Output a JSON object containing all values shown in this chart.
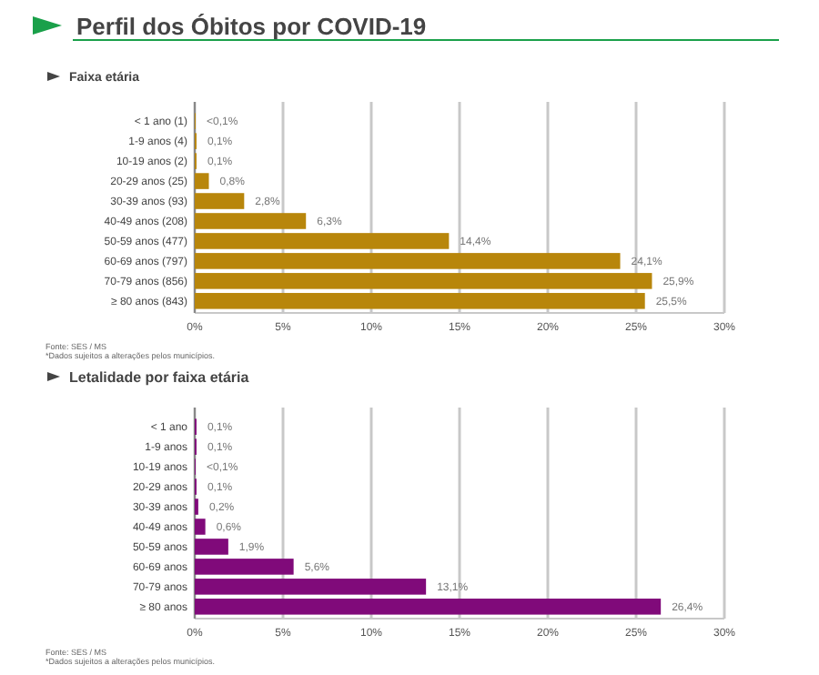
{
  "chart_data": [
    {
      "type": "bar",
      "orientation": "horizontal",
      "title": "Perfil dos Óbitos por COVID-19",
      "subtitle": "Faixa etária",
      "categories": [
        "< 1 ano (1)",
        "1-9 anos (4)",
        "10-19 anos (2)",
        "20-29 anos (25)",
        "30-39 anos (93)",
        "40-49 anos (208)",
        "50-59 anos (477)",
        "60-69 anos (797)",
        "70-79 anos (856)",
        "≥ 80 anos (843)"
      ],
      "values": [
        0.05,
        0.1,
        0.1,
        0.8,
        2.8,
        6.3,
        14.4,
        24.1,
        25.9,
        25.5
      ],
      "value_labels": [
        "<0,1%",
        "0,1%",
        "0,1%",
        "0,8%",
        "2,8%",
        "6,3%",
        "14,4%",
        "24,1%",
        "25,9%",
        "25,5%"
      ],
      "color": "#b8860b",
      "xlim": [
        0,
        30
      ],
      "xticks": [
        {
          "value": 0,
          "label": "0%"
        },
        {
          "value": 5,
          "label": "5%"
        },
        {
          "value": 10,
          "label": "10%"
        },
        {
          "value": 15,
          "label": "15%"
        },
        {
          "value": 20,
          "label": "20%"
        },
        {
          "value": 25,
          "label": "25%"
        },
        {
          "value": 30,
          "label": "30%"
        }
      ],
      "grid": "x",
      "annotations": [
        "Fonte: SES / MS",
        "*Dados sujeitos a alterações pelos municípios."
      ]
    },
    {
      "type": "bar",
      "orientation": "horizontal",
      "title": "Letalidade por faixa etária",
      "categories": [
        "< 1 ano",
        "1-9 anos",
        "10-19 anos",
        "20-29 anos",
        "30-39 anos",
        "40-49 anos",
        "50-59 anos",
        "60-69 anos",
        "70-79 anos",
        "≥ 80 anos"
      ],
      "values": [
        0.1,
        0.1,
        0.05,
        0.1,
        0.2,
        0.6,
        1.9,
        5.6,
        13.1,
        26.4
      ],
      "value_labels": [
        "0,1%",
        "0,1%",
        "<0,1%",
        "0,1%",
        "0,2%",
        "0,6%",
        "1,9%",
        "5,6%",
        "13,1%",
        "26,4%"
      ],
      "color": "#800a7a",
      "xlim": [
        0,
        30
      ],
      "xticks": [
        {
          "value": 0,
          "label": "0%"
        },
        {
          "value": 5,
          "label": "5%"
        },
        {
          "value": 10,
          "label": "10%"
        },
        {
          "value": 15,
          "label": "15%"
        },
        {
          "value": 20,
          "label": "20%"
        },
        {
          "value": 25,
          "label": "25%"
        },
        {
          "value": 30,
          "label": "30%"
        }
      ],
      "grid": "x",
      "annotations": [
        "Fonte: SES / MS",
        "*Dados sujeitos a alterações pelos municípios."
      ]
    }
  ]
}
